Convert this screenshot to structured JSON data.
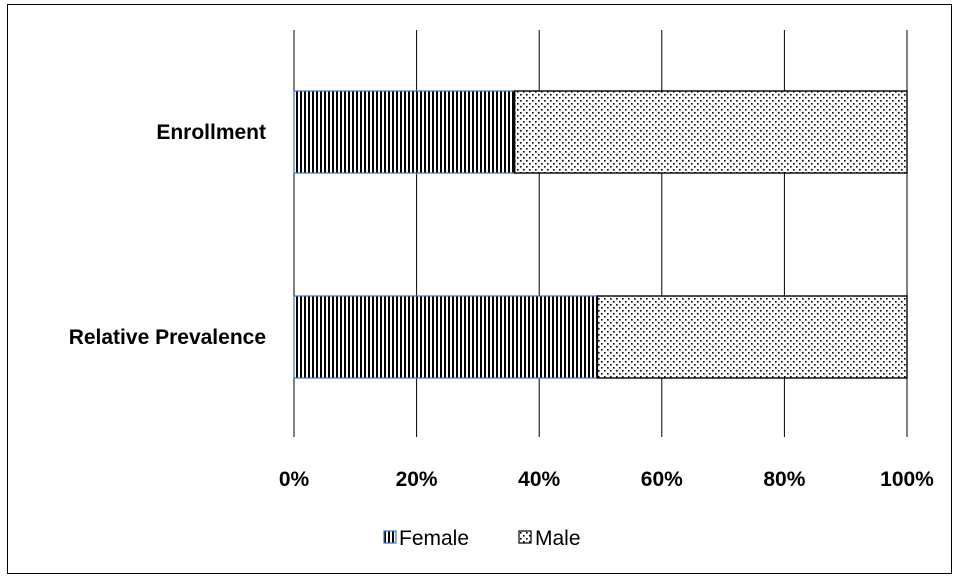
{
  "chart_data": {
    "type": "bar",
    "orientation": "horizontal",
    "stacking": "percent",
    "categories": [
      "Enrollment",
      "Relative Prevalence"
    ],
    "series": [
      {
        "name": "Female",
        "values": [
          36,
          49.5
        ],
        "pattern": "vertical-lines",
        "color": "#000000"
      },
      {
        "name": "Male",
        "values": [
          64,
          50.5
        ],
        "pattern": "dots",
        "color": "#000000"
      }
    ],
    "xlim": [
      0,
      100
    ],
    "x_ticks": [
      "0%",
      "20%",
      "40%",
      "60%",
      "80%",
      "100%"
    ],
    "grid": "vertical",
    "legend": "bottom",
    "title": "",
    "xlabel": "",
    "ylabel": ""
  }
}
